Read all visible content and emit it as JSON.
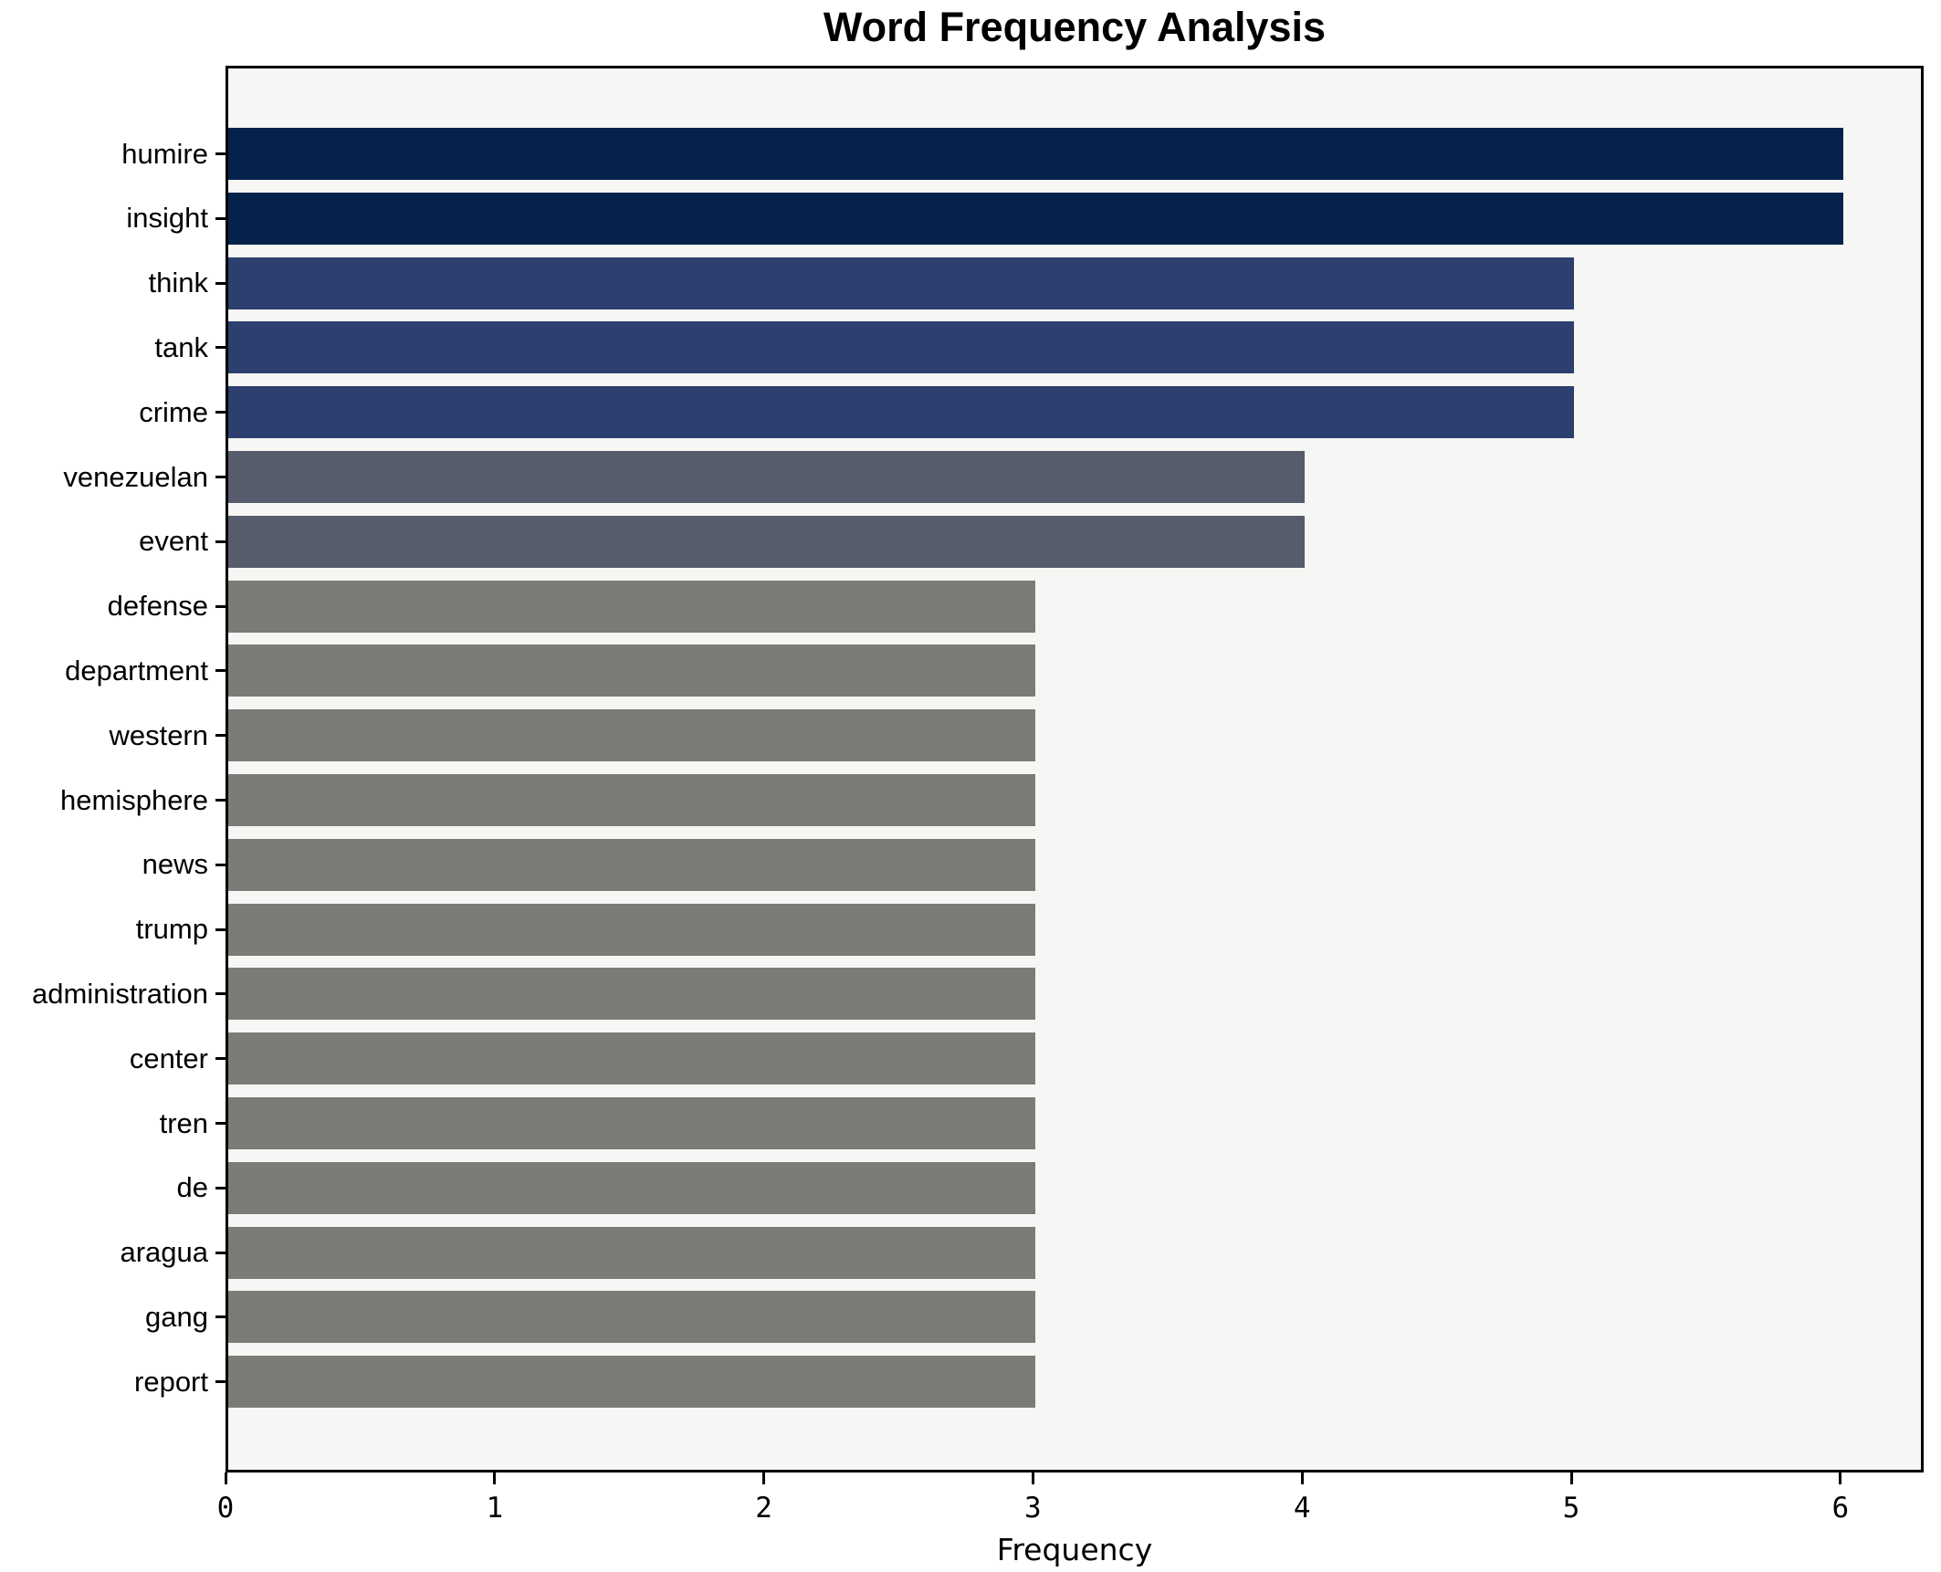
{
  "chart_data": {
    "type": "bar",
    "orientation": "horizontal",
    "title": "Word Frequency Analysis",
    "xlabel": "Frequency",
    "ylabel": "",
    "xlim": [
      0,
      6.29
    ],
    "grid": false,
    "legend": false,
    "x_ticks": [
      "0",
      "1",
      "2",
      "3",
      "4",
      "5",
      "6"
    ],
    "categories": [
      "humire",
      "insight",
      "think",
      "tank",
      "crime",
      "venezuelan",
      "event",
      "defense",
      "department",
      "western",
      "hemisphere",
      "news",
      "trump",
      "administration",
      "center",
      "tren",
      "de",
      "aragua",
      "gang",
      "report"
    ],
    "values": [
      6,
      6,
      5,
      5,
      5,
      4,
      4,
      3,
      3,
      3,
      3,
      3,
      3,
      3,
      3,
      3,
      3,
      3,
      3,
      3
    ],
    "bar_colors": [
      "#04224c",
      "#04224c",
      "#2d3f6e",
      "#2d3f6e",
      "#2d3f6e",
      "#565c6c",
      "#565c6c",
      "#7c7b77",
      "#7c7b77",
      "#7c7b77",
      "#7c7b77",
      "#7c7b77",
      "#7c7b77",
      "#7c7b77",
      "#7c7b77",
      "#7c7b77",
      "#7c7b77",
      "#7c7b77",
      "#7c7b77",
      "#7c7b77"
    ]
  },
  "colors": {
    "value_6": "#04224c",
    "value_5": "#2d3f6e",
    "value_4": "#565c6c",
    "value_3": "#7c7b77",
    "plot_background": "#f6f6f4",
    "figure_background": "#ffffff",
    "axis": "#000000"
  }
}
